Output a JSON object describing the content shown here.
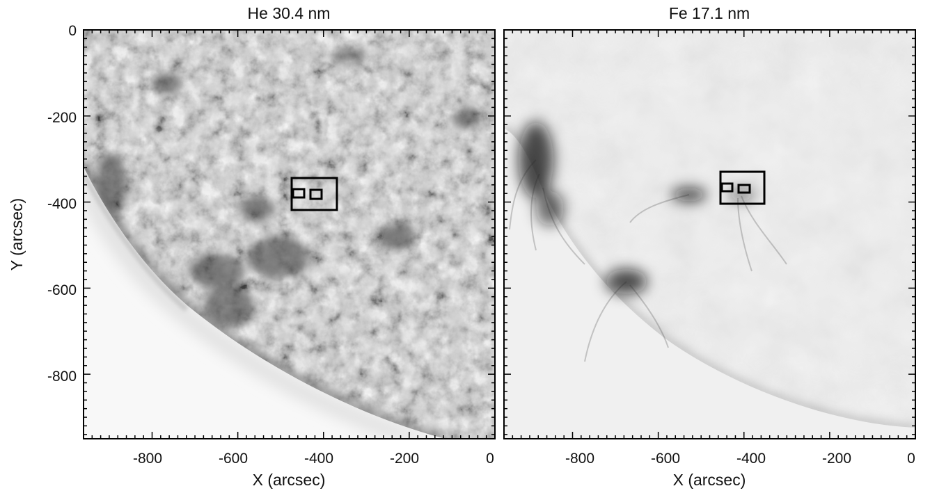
{
  "figure": {
    "panels": [
      {
        "id": "he",
        "title": "He 30.4 nm",
        "x_ticks": [
          "-800",
          "-600",
          "-400",
          "-200",
          "0"
        ],
        "y_ticks": [
          "0",
          "-200",
          "-400",
          "-600",
          "-800"
        ],
        "x_label": "X (arcsec)",
        "y_label": "Y (arcsec)"
      },
      {
        "id": "fe",
        "title": "Fe 17.1 nm",
        "x_ticks": [
          "-800",
          "-600",
          "-400",
          "-200",
          "0"
        ],
        "x_label": "X (arcsec)"
      }
    ],
    "axis_ranges": {
      "x": [
        -960,
        0
      ],
      "y": [
        -950,
        0
      ]
    },
    "image_colormap": "inverted grayscale (bright emission rendered dark)",
    "overlays": {
      "he": {
        "outer_box": {
          "x": [
            -465,
            -362
          ],
          "y": [
            -415,
            -345
          ]
        },
        "inner_boxes": [
          {
            "x": [
              -462,
              -438
            ],
            "y": [
              -388,
              -368
            ]
          },
          {
            "x": [
              -428,
              -402
            ],
            "y": [
              -390,
              -370
            ]
          }
        ]
      },
      "fe": {
        "outer_box": {
          "x": [
            -462,
            -360
          ],
          "y": [
            -400,
            -325
          ]
        },
        "inner_boxes": [
          {
            "x": [
              -460,
              -434
            ],
            "y": [
              -372,
              -355
            ]
          },
          {
            "x": [
              -422,
              -396
            ],
            "y": [
              -377,
              -360
            ]
          }
        ]
      }
    }
  }
}
